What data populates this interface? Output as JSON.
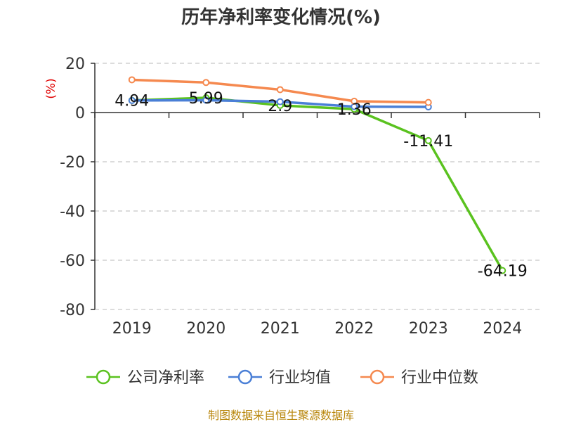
{
  "chart_data": {
    "type": "line",
    "title": "历年净利率变化情况(%)",
    "ylabel": "(%)",
    "xlabel": "",
    "categories": [
      "2019",
      "2020",
      "2021",
      "2022",
      "2023",
      "2024"
    ],
    "ylim": [
      -80,
      20
    ],
    "yticks": [
      20,
      0,
      -20,
      -40,
      -60,
      -80
    ],
    "grid": true,
    "legend_position": "bottom",
    "series": [
      {
        "name": "公司净利率",
        "color": "#5ac21f",
        "values": [
          4.94,
          5.99,
          2.9,
          1.36,
          -11.41,
          -64.19
        ],
        "labels": [
          "4.94",
          "5.99",
          "2.9",
          "1.36",
          "-11.41",
          "-64.19"
        ]
      },
      {
        "name": "行业均值",
        "color": "#4a7fd6",
        "values": [
          4.9,
          5.0,
          4.4,
          2.4,
          2.3,
          null
        ]
      },
      {
        "name": "行业中位数",
        "color": "#f5894f",
        "values": [
          13.3,
          12.2,
          9.3,
          4.6,
          4.1,
          null
        ]
      }
    ]
  },
  "footer": {
    "source": "制图数据来自恒生聚源数据库"
  }
}
